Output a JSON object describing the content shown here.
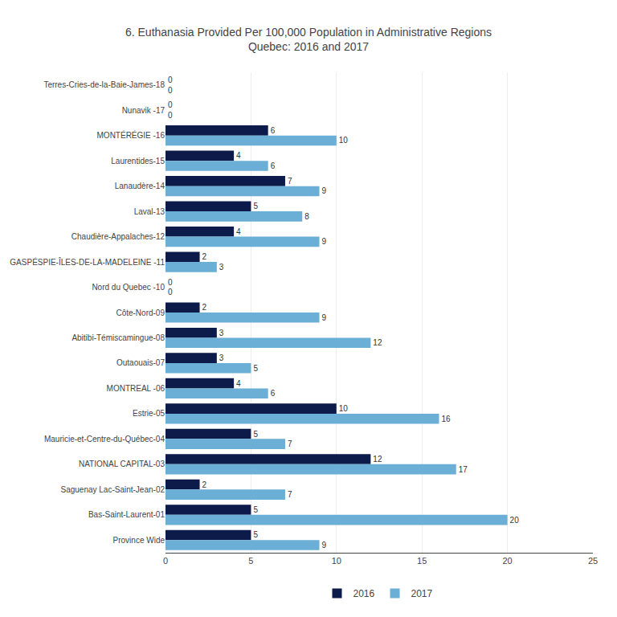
{
  "chart_data": {
    "type": "bar",
    "orientation": "horizontal",
    "title": "6. Euthanasia Provided Per 100,000 Population in Administrative Regions\nQuebec: 2016 and 2017",
    "categories": [
      "Terres-Cries-de-la-Baie-James-18",
      "Nunavik -17",
      "MONTÉRÉGIE -16",
      "Laurentides-15",
      "Lanaudère-14",
      "Laval-13",
      "Chaudière-Appalaches-12",
      "GASPÉSPIE-ÎLES-DE-LA-MADELEINE -11",
      "Nord du Quebec -10",
      "Côte-Nord-09",
      "Abitibi-Témiscamingue-08",
      "Outaouais-07",
      "MONTREAL -06",
      "Estrie-05",
      "Mauricie-et-Centre-du-Québec-04",
      "NATIONAL CAPITAL-03",
      "Saguenay Lac-Saint-Jean-02",
      "Bas-Saint-Laurent-01",
      "Province Wide"
    ],
    "series": [
      {
        "name": "2016",
        "color": "#0d1b4b",
        "values": [
          0,
          0,
          6,
          4,
          7,
          5,
          4,
          2,
          0,
          2,
          3,
          3,
          4,
          10,
          5,
          12,
          2,
          5,
          5
        ]
      },
      {
        "name": "2017",
        "color": "#6baed6",
        "values": [
          0,
          0,
          10,
          6,
          9,
          8,
          9,
          3,
          0,
          9,
          12,
          5,
          6,
          16,
          7,
          17,
          7,
          20,
          9
        ]
      }
    ],
    "xlim": [
      0,
      25
    ],
    "xticks": [
      0,
      5,
      10,
      15,
      20,
      25
    ],
    "grid": true,
    "legend": "bottom",
    "data_labels": true
  }
}
